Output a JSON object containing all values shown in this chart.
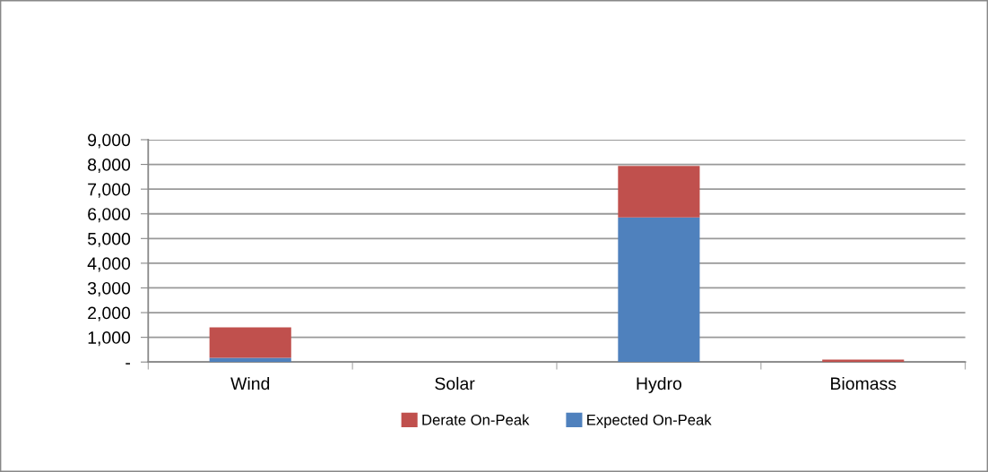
{
  "chart_data": {
    "type": "bar",
    "stacked": true,
    "categories": [
      "Wind",
      "Solar",
      "Hydro",
      "Biomass"
    ],
    "series": [
      {
        "name": "Expected On-Peak",
        "color": "#4f81bd",
        "values": [
          170,
          0,
          5850,
          0
        ]
      },
      {
        "name": "Derate On-Peak",
        "color": "#c0504d",
        "values": [
          1230,
          0,
          2085,
          100
        ]
      }
    ],
    "ylim": [
      0,
      9000
    ],
    "yticks": [
      {
        "value": 0,
        "label": "-"
      },
      {
        "value": 1000,
        "label": "1,000"
      },
      {
        "value": 2000,
        "label": "2,000"
      },
      {
        "value": 3000,
        "label": "3,000"
      },
      {
        "value": 4000,
        "label": "4,000"
      },
      {
        "value": 5000,
        "label": "5,000"
      },
      {
        "value": 6000,
        "label": "6,000"
      },
      {
        "value": 7000,
        "label": "7,000"
      },
      {
        "value": 8000,
        "label": "8,000"
      },
      {
        "value": 9000,
        "label": "9,000"
      }
    ],
    "grid": "y",
    "legend": "bottom"
  }
}
